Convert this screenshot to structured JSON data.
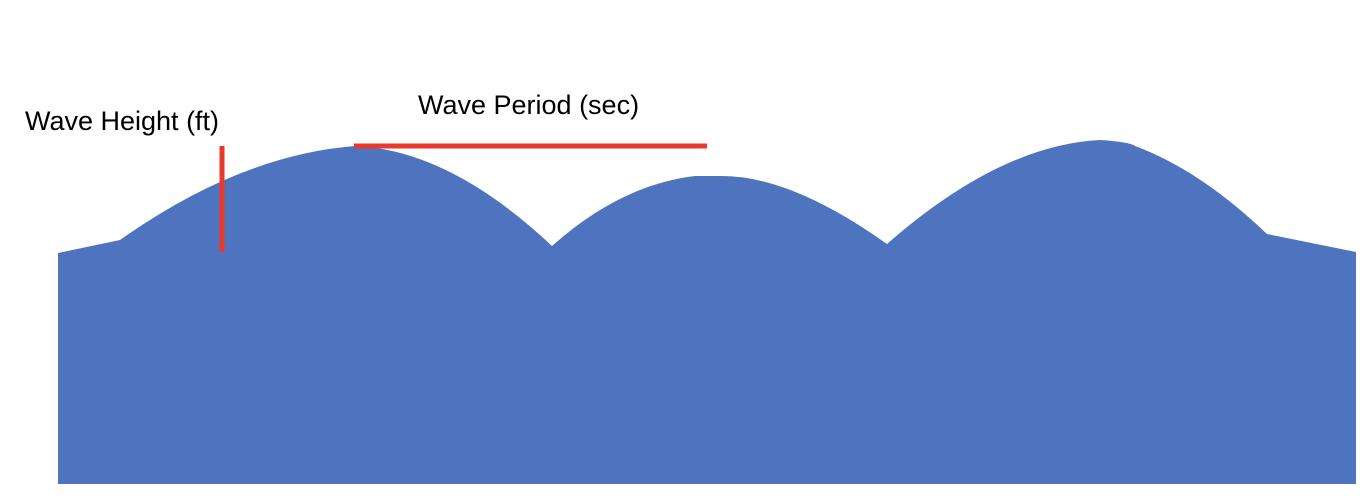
{
  "labels": {
    "wave_height": "Wave Height (ft)",
    "wave_period": "Wave Period (sec)"
  }
}
